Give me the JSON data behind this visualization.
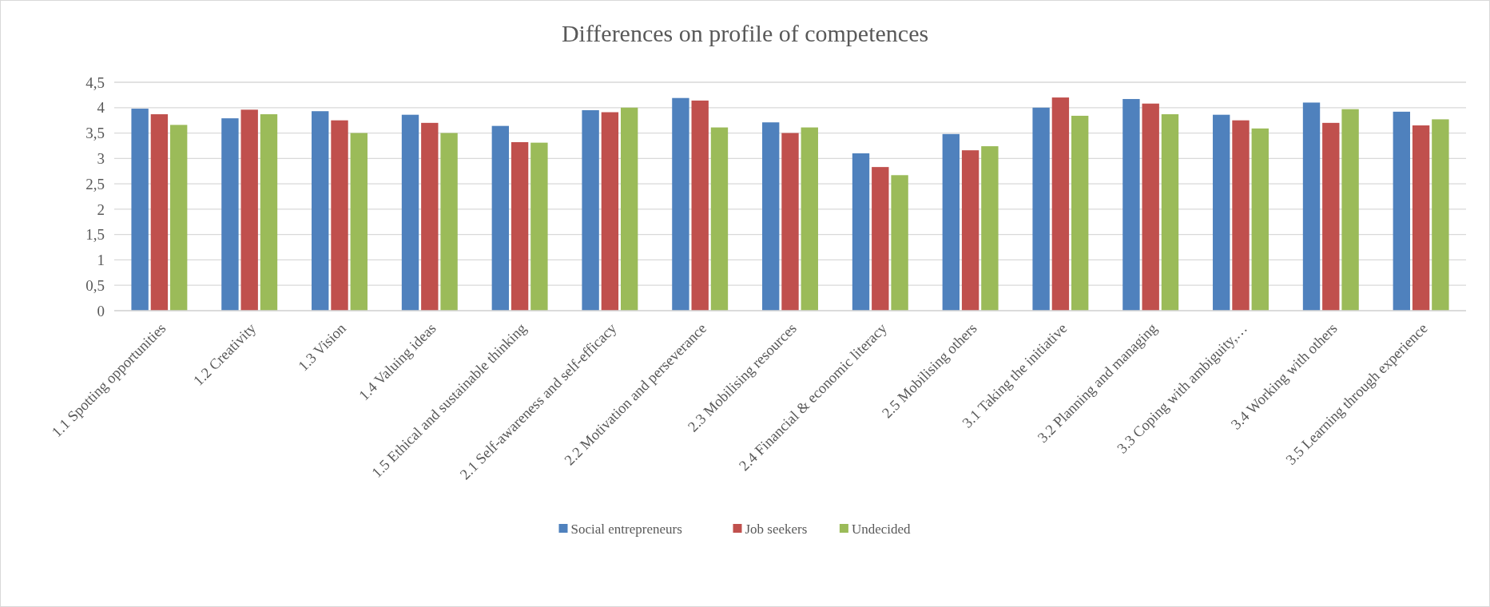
{
  "chart_data": {
    "type": "bar",
    "title": "Differences on profile of competences",
    "categories": [
      "1.1 Spotting opportunities",
      "1.2 Creativity",
      "1.3 Vision",
      "1.4 Valuing ideas",
      "1.5 Ethical and sustainable thinking",
      "2.1 Self-awareness and self-efficacy",
      "2.2 Motivation and perseverance",
      "2.3 Mobilising resources",
      "2.4 Financial & economic literacy",
      "2.5 Mobilising others",
      "3.1 Taking the initiative",
      "3.2 Planning and managing",
      "3.3 Coping with ambiguity,…",
      "3.4 Working with others",
      "3.5 Learning through experience"
    ],
    "series": [
      {
        "name": "Social entrepreneurs",
        "color": "#4f81bd",
        "values": [
          3.98,
          3.79,
          3.93,
          3.86,
          3.64,
          3.95,
          4.19,
          3.71,
          3.1,
          3.48,
          4.0,
          4.17,
          3.86,
          4.1,
          3.92
        ]
      },
      {
        "name": "Job seekers",
        "color": "#c0504d",
        "values": [
          3.87,
          3.96,
          3.75,
          3.7,
          3.32,
          3.91,
          4.14,
          3.5,
          2.83,
          3.16,
          4.2,
          4.08,
          3.75,
          3.7,
          3.65
        ]
      },
      {
        "name": "Undecided",
        "color": "#9bbb59",
        "values": [
          3.66,
          3.87,
          3.5,
          3.5,
          3.31,
          4.0,
          3.61,
          3.61,
          2.67,
          3.24,
          3.84,
          3.87,
          3.59,
          3.97,
          3.77
        ]
      }
    ],
    "ylim": [
      0,
      4.5
    ],
    "yticks": [
      0,
      {
        "value": 0.5,
        "label": "0,5"
      },
      1,
      {
        "value": 1.5,
        "label": "1,5"
      },
      2,
      {
        "value": 2.5,
        "label": "2,5"
      },
      3,
      {
        "value": 3.5,
        "label": "3,5"
      },
      4,
      {
        "value": 4.5,
        "label": "4,5"
      }
    ],
    "grid": "y",
    "legend": "bottom"
  }
}
